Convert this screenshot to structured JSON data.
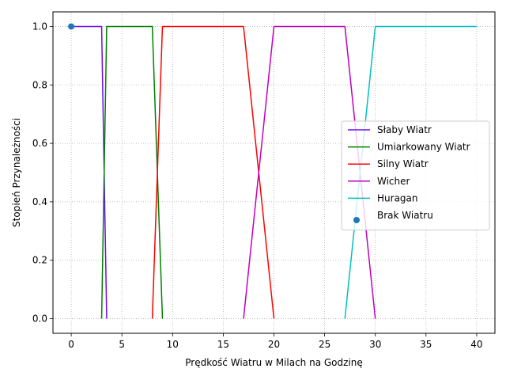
{
  "chart_data": {
    "type": "line",
    "xlabel": "Prędkość Wiatru w Milach na Godzinę",
    "ylabel": "Stopień Przynależności",
    "xlim": [
      -1.8,
      41.8
    ],
    "ylim": [
      -0.05,
      1.05
    ],
    "xticks": [
      0,
      5,
      10,
      15,
      20,
      25,
      30,
      35,
      40
    ],
    "yticks": [
      0.0,
      0.2,
      0.4,
      0.6,
      0.8,
      1.0
    ],
    "xtick_labels": [
      "0",
      "5",
      "10",
      "15",
      "20",
      "25",
      "30",
      "35",
      "40"
    ],
    "ytick_labels": [
      "0.0",
      "0.2",
      "0.4",
      "0.6",
      "0.8",
      "1.0"
    ],
    "grid": true,
    "legend_position": "center-right",
    "series": [
      {
        "name": "Słaby Wiatr",
        "color": "#6a0df5",
        "kind": "line",
        "x": [
          0,
          3,
          3.5
        ],
        "y": [
          1,
          1,
          0
        ]
      },
      {
        "name": "Umiarkowany Wiatr",
        "color": "#008000",
        "kind": "line",
        "x": [
          3,
          3.5,
          8,
          9
        ],
        "y": [
          0,
          1,
          1,
          0
        ]
      },
      {
        "name": "Silny Wiatr",
        "color": "#ff0000",
        "kind": "line",
        "x": [
          8,
          9,
          17,
          20
        ],
        "y": [
          0,
          1,
          1,
          0
        ]
      },
      {
        "name": "Wicher",
        "color": "#bf00bf",
        "kind": "line",
        "x": [
          17,
          20,
          27,
          30
        ],
        "y": [
          0,
          1,
          1,
          0
        ]
      },
      {
        "name": "Huragan",
        "color": "#00bfbf",
        "kind": "line",
        "x": [
          27,
          30,
          40
        ],
        "y": [
          0,
          1,
          1
        ]
      },
      {
        "name": "Brak Wiatru",
        "color": "#1f77b4",
        "kind": "scatter",
        "x": [
          0
        ],
        "y": [
          1
        ]
      }
    ]
  }
}
